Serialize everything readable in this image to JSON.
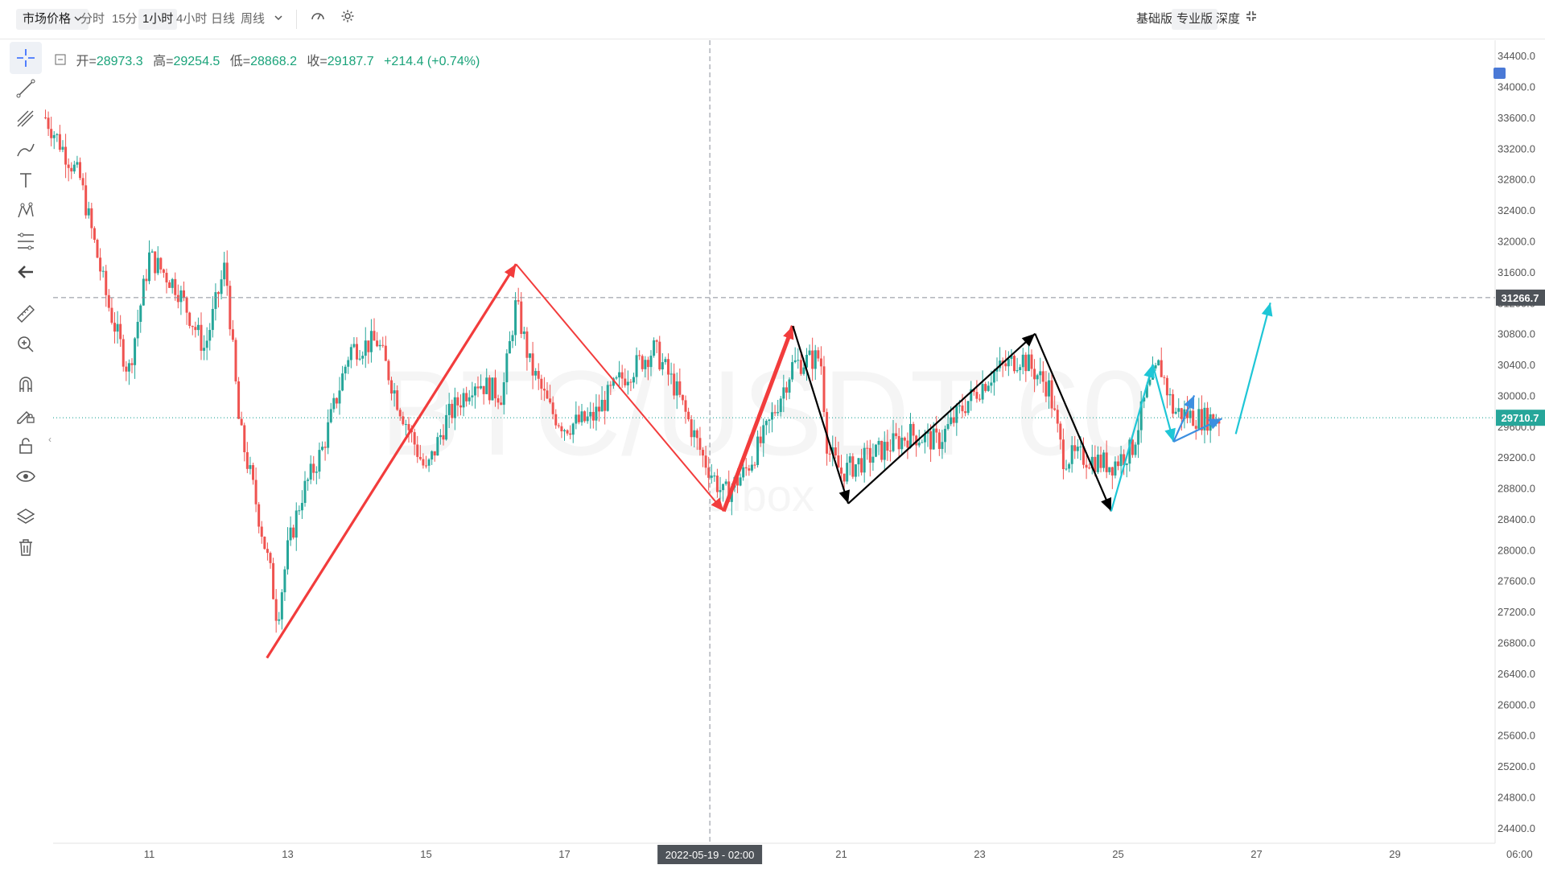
{
  "toolbar": {
    "price_type": "市场价格",
    "intervals": [
      "分时",
      "15分",
      "1小时",
      "4小时",
      "日线",
      "周线"
    ],
    "active_interval": "1小时",
    "versions": [
      "基础版",
      "专业版",
      "深度"
    ],
    "active_version": "专业版"
  },
  "ohlc": {
    "open_label": "开=",
    "open": "28973.3",
    "high_label": "高=",
    "high": "29254.5",
    "low_label": "低=",
    "low": "28868.2",
    "close_label": "收=",
    "close": "29187.7",
    "change": "+214.4 (+0.74%)"
  },
  "sidebar_tools": [
    "crosshair-icon",
    "trend-line-icon",
    "channel-icon",
    "brush-icon",
    "text-icon",
    "pattern-icon",
    "fib-icon",
    "back-arrow-icon",
    "ruler-icon",
    "zoom-in-icon",
    "magnet-icon",
    "lock-drawing-icon",
    "lock-icon",
    "eye-icon",
    "layers-icon",
    "trash-icon"
  ],
  "colors": {
    "up": "#26a69a",
    "down": "#ef5350",
    "red_arrow": "#f23c3c",
    "black_arrow": "#000000",
    "cyan_arrow": "#1ec6d6",
    "blue_arrow": "#3d8fe0"
  },
  "chart_data": {
    "type": "candlestick",
    "symbol_watermark": "BTC/USDT 60",
    "watermark_logo": "aibox",
    "x_ticks": [
      "11",
      "13",
      "15",
      "17",
      "19",
      "21",
      "23",
      "25",
      "27",
      "29",
      "06:00"
    ],
    "crosshair_time": "2022-05-19 - 02:00",
    "y_ticks": [
      "34400.0",
      "34000.0",
      "33600.0",
      "33200.0",
      "32800.0",
      "32400.0",
      "32000.0",
      "31600.0",
      "31200.0",
      "30800.0",
      "30400.0",
      "30000.0",
      "29600.0",
      "29200.0",
      "28800.0",
      "28400.0",
      "28000.0",
      "27600.0",
      "27200.0",
      "26800.0",
      "26400.0",
      "26000.0",
      "25600.0",
      "25200.0",
      "24800.0",
      "24400.0"
    ],
    "ylim": [
      24200,
      34600
    ],
    "crosshair_price": "31266.7",
    "last_price": "29710.7",
    "price_path": [
      [
        9.5,
        33600
      ],
      [
        10.0,
        32800
      ],
      [
        10.4,
        31200
      ],
      [
        10.7,
        30300
      ],
      [
        11.0,
        31800
      ],
      [
        11.4,
        31400
      ],
      [
        11.8,
        30600
      ],
      [
        12.1,
        31700
      ],
      [
        12.3,
        29600
      ],
      [
        12.5,
        28800
      ],
      [
        12.75,
        27700
      ],
      [
        12.85,
        27100
      ],
      [
        13.0,
        28000
      ],
      [
        13.2,
        28700
      ],
      [
        13.5,
        29300
      ],
      [
        13.9,
        30600
      ],
      [
        14.3,
        30700
      ],
      [
        14.6,
        29900
      ],
      [
        15.0,
        29000
      ],
      [
        15.3,
        29700
      ],
      [
        15.7,
        30200
      ],
      [
        16.1,
        30000
      ],
      [
        16.3,
        31200
      ],
      [
        16.5,
        30400
      ],
      [
        16.8,
        29800
      ],
      [
        17.0,
        29600
      ],
      [
        17.4,
        29700
      ],
      [
        17.8,
        30200
      ],
      [
        18.3,
        30600
      ],
      [
        18.6,
        30100
      ],
      [
        19.0,
        29200
      ],
      [
        19.3,
        28700
      ],
      [
        19.6,
        29000
      ],
      [
        19.9,
        29500
      ],
      [
        20.3,
        30400
      ],
      [
        20.7,
        30500
      ],
      [
        20.8,
        29300
      ],
      [
        21.0,
        29000
      ],
      [
        21.4,
        29200
      ],
      [
        22.0,
        29500
      ],
      [
        22.4,
        29400
      ],
      [
        22.8,
        29900
      ],
      [
        23.2,
        30300
      ],
      [
        23.6,
        30500
      ],
      [
        24.0,
        30100
      ],
      [
        24.2,
        29200
      ],
      [
        24.5,
        29200
      ],
      [
        24.9,
        29100
      ],
      [
        25.2,
        29300
      ],
      [
        25.4,
        30000
      ],
      [
        25.6,
        30400
      ],
      [
        25.8,
        29800
      ],
      [
        26.2,
        29700
      ],
      [
        26.5,
        29710
      ]
    ],
    "drawn_arrows": [
      {
        "color": "red",
        "style": "thin",
        "from": [
          12.7,
          26600
        ],
        "to": [
          16.3,
          31700
        ]
      },
      {
        "color": "red",
        "style": "thin",
        "from": [
          16.3,
          31700
        ],
        "to": [
          19.3,
          28500
        ]
      },
      {
        "color": "red",
        "style": "thick",
        "from": [
          19.3,
          28500
        ],
        "to": [
          20.3,
          30900
        ]
      },
      {
        "color": "black",
        "style": "thin",
        "from": [
          20.3,
          30900
        ],
        "to": [
          21.1,
          28600
        ]
      },
      {
        "color": "black",
        "style": "thin",
        "from": [
          21.1,
          28600
        ],
        "to": [
          23.8,
          30800
        ]
      },
      {
        "color": "black",
        "style": "thin",
        "from": [
          23.8,
          30800
        ],
        "to": [
          24.9,
          28500
        ]
      },
      {
        "color": "cyan",
        "style": "thin",
        "from": [
          24.9,
          28500
        ],
        "to": [
          25.5,
          30400
        ]
      },
      {
        "color": "cyan",
        "style": "thin",
        "from": [
          25.5,
          30400
        ],
        "to": [
          25.8,
          29400
        ]
      },
      {
        "color": "blue",
        "style": "thin",
        "from": [
          25.8,
          29400
        ],
        "to": [
          26.5,
          29700
        ]
      },
      {
        "color": "blue",
        "style": "thin",
        "from": [
          25.8,
          29400
        ],
        "to": [
          26.1,
          30000
        ]
      },
      {
        "color": "cyan",
        "style": "thin",
        "from": [
          26.7,
          29500
        ],
        "to": [
          27.2,
          31200
        ]
      }
    ]
  }
}
